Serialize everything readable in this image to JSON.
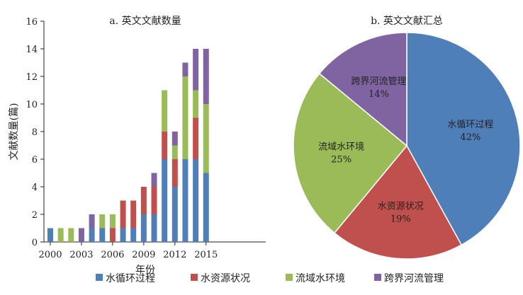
{
  "colors": {
    "water_cycle": "#4f7fb8",
    "water_resources": "#c0504d",
    "watershed_env": "#9bbb59",
    "transboundary": "#8064a2",
    "axis": "#222222"
  },
  "legend": {
    "items": [
      {
        "key": "water_cycle",
        "label": "水循环过程"
      },
      {
        "key": "water_resources",
        "label": "水资源状况"
      },
      {
        "key": "watershed_env",
        "label": "流域水环境"
      },
      {
        "key": "transboundary",
        "label": "跨界河流管理"
      }
    ]
  },
  "chart_data": [
    {
      "type": "bar",
      "stacked": true,
      "title": "a. 英文文献数量",
      "xlabel": "年份",
      "ylabel": "文献数量(篇)",
      "ylim": [
        0,
        16
      ],
      "yticks": [
        0,
        2,
        4,
        6,
        8,
        10,
        12,
        14,
        16
      ],
      "xtick_labels": [
        "2000",
        "2003",
        "2006",
        "2009",
        "2012",
        "2015"
      ],
      "categories": [
        "2000",
        "2001",
        "2002",
        "2003",
        "2004",
        "2005",
        "2006",
        "2007",
        "2008",
        "2009",
        "2010",
        "2011",
        "2012",
        "2013",
        "2014",
        "2015"
      ],
      "series": [
        {
          "name": "水循环过程",
          "key": "water_cycle",
          "values": [
            1,
            0,
            0,
            0,
            1,
            1,
            0,
            1,
            1,
            2,
            2,
            6,
            4,
            6,
            6,
            5
          ]
        },
        {
          "name": "水资源状况",
          "key": "water_resources",
          "values": [
            0,
            0,
            0,
            0,
            0,
            0,
            1,
            2,
            2,
            2,
            2,
            2,
            2,
            0,
            3,
            0
          ]
        },
        {
          "name": "流域水环境",
          "key": "watershed_env",
          "values": [
            0,
            1,
            1,
            0,
            0,
            1,
            1,
            0,
            0,
            0,
            0,
            3,
            1,
            6,
            2,
            5
          ]
        },
        {
          "name": "跨界河流管理",
          "key": "transboundary",
          "values": [
            0,
            0,
            0,
            1,
            1,
            0,
            0,
            0,
            0,
            0,
            1,
            0,
            1,
            1,
            3,
            4
          ]
        }
      ]
    },
    {
      "type": "pie",
      "title": "b. 英文文献汇总",
      "slices": [
        {
          "label": "水循环过程",
          "pct_label": "42%",
          "value": 42,
          "key": "water_cycle"
        },
        {
          "label": "水资源状况",
          "pct_label": "19%",
          "value": 19,
          "key": "water_resources"
        },
        {
          "label": "流域水环境",
          "pct_label": "25%",
          "value": 25,
          "key": "watershed_env"
        },
        {
          "label": "跨界河流管理",
          "pct_label": "14%",
          "value": 14,
          "key": "transboundary"
        }
      ]
    }
  ]
}
